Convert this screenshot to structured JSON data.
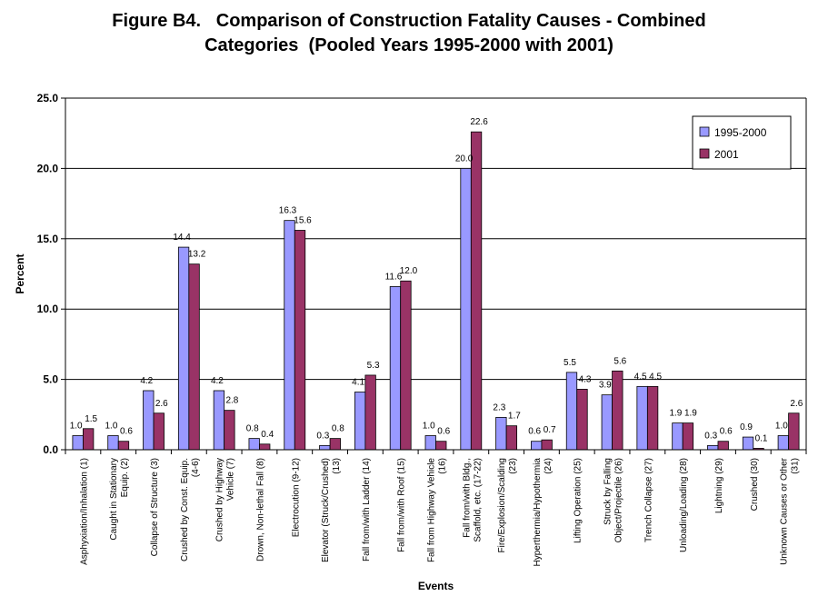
{
  "title_line1": "Figure B4.   Comparison of Construction Fatality Causes - Combined",
  "title_line2": "Categories  (Pooled Years 1995-2000 with 2001)",
  "chart_data": {
    "type": "bar",
    "xlabel": "Events",
    "ylabel": "Percent",
    "ylim": [
      0,
      25
    ],
    "yticks": [
      "0.0",
      "5.0",
      "10.0",
      "15.0",
      "20.0",
      "25.0"
    ],
    "grid": true,
    "legend_position": "top-right",
    "categories": [
      [
        "Asphyxiation/Inhalation (1)"
      ],
      [
        "Caught in Stationary",
        "Equip. (2)"
      ],
      [
        "Collapse of Structure (3)"
      ],
      [
        "Crushed by Const. Equip.",
        "(4-6)"
      ],
      [
        "Crushed by Highway",
        "Vehicle (7)"
      ],
      [
        "Drown, Non-lethal Fall (8)"
      ],
      [
        "Electrocution (9-12)"
      ],
      [
        "Elevator (Struck/Crushed)",
        "(13)"
      ],
      [
        "Fall from/with Ladder (14)"
      ],
      [
        "Fall from/with Roof (15)"
      ],
      [
        "Fall from Highway Vehicle",
        "(16)"
      ],
      [
        "Fall from/with Bldg.,",
        "Scaffold, etc. (17-22)"
      ],
      [
        "Fire/Explosion/Scalding",
        "(23)"
      ],
      [
        "Hyperthermia/Hypothermia",
        "(24)"
      ],
      [
        "Lifting Operation (25)"
      ],
      [
        "Struck by Falling",
        "Object/Projectile (26)"
      ],
      [
        "Trench Collapse (27)"
      ],
      [
        "Unloading/Loading (28)"
      ],
      [
        "Lightning (29)"
      ],
      [
        "Crushed (30)"
      ],
      [
        "Unknown Causes or Other",
        "(31)"
      ]
    ],
    "series": [
      {
        "name": "1995-2000",
        "color": "#9999ff",
        "values": [
          1.0,
          1.0,
          4.2,
          14.4,
          4.2,
          0.8,
          16.3,
          0.3,
          4.1,
          11.6,
          1.0,
          20.0,
          2.3,
          0.6,
          5.5,
          3.9,
          4.5,
          1.9,
          0.3,
          0.9,
          1.0
        ],
        "labels": [
          "1.0",
          "1.0",
          "4.2",
          "14.4",
          "4.2",
          "0.8",
          "16.3",
          "0.3",
          "4.1",
          "11.6",
          "1.0",
          "20.0",
          "2.3",
          "0.6",
          "5.5",
          "3.9",
          "4.5",
          "1.9",
          "0.3",
          "0.9",
          "1.0"
        ]
      },
      {
        "name": "2001",
        "color": "#993366",
        "values": [
          1.5,
          0.6,
          2.6,
          13.2,
          2.8,
          0.4,
          15.6,
          0.8,
          5.3,
          12.0,
          0.6,
          22.6,
          1.7,
          0.7,
          4.3,
          5.6,
          4.5,
          1.9,
          0.6,
          0.1,
          2.6
        ],
        "labels": [
          "1.5",
          "0.6",
          "2.6",
          "13.2",
          "2.8",
          "0.4",
          "15.6",
          "0.8",
          "5.3",
          "12.0",
          "0.6",
          "22.6",
          "1.7",
          "0.7",
          "4.3",
          "5.6",
          "4.5",
          "1.9",
          "0.6",
          "0.1",
          "2.6"
        ]
      }
    ]
  }
}
